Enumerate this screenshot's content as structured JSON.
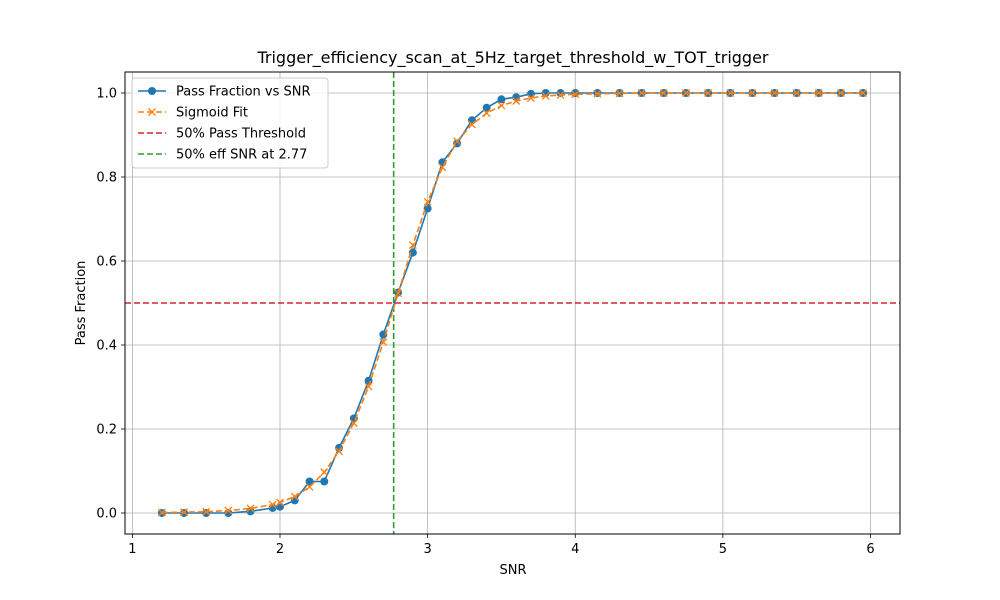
{
  "chart_data": {
    "type": "line",
    "title": "Trigger_efficiency_scan_at_5Hz_target_threshold_w_TOT_trigger",
    "xlabel": "SNR",
    "ylabel": "Pass Fraction",
    "xlim": [
      0.95,
      6.2
    ],
    "ylim": [
      -0.05,
      1.05
    ],
    "xticks": [
      "1",
      "2",
      "3",
      "4",
      "5",
      "6"
    ],
    "yticks": [
      "0.0",
      "0.2",
      "0.4",
      "0.6",
      "0.8",
      "1.0"
    ],
    "grid": true,
    "legend_position": "top-left",
    "series": [
      {
        "name": "Pass Fraction vs SNR",
        "color": "#1f77b4",
        "marker": "circle",
        "linestyle": "solid",
        "x": [
          1.2,
          1.35,
          1.5,
          1.65,
          1.8,
          1.95,
          2.0,
          2.1,
          2.2,
          2.3,
          2.4,
          2.5,
          2.6,
          2.7,
          2.8,
          2.9,
          3.0,
          3.1,
          3.2,
          3.3,
          3.4,
          3.5,
          3.6,
          3.7,
          3.8,
          3.9,
          4.0,
          4.15,
          4.3,
          4.45,
          4.6,
          4.75,
          4.9,
          5.05,
          5.2,
          5.35,
          5.5,
          5.65,
          5.8,
          5.95
        ],
        "y": [
          0.0,
          0.0,
          0.0,
          0.0,
          0.004,
          0.012,
          0.015,
          0.03,
          0.075,
          0.075,
          0.155,
          0.225,
          0.315,
          0.425,
          0.525,
          0.62,
          0.725,
          0.835,
          0.88,
          0.935,
          0.965,
          0.985,
          0.99,
          0.998,
          1.0,
          1.0,
          1.0,
          1.0,
          1.0,
          1.0,
          1.0,
          1.0,
          1.0,
          1.0,
          1.0,
          1.0,
          1.0,
          1.0,
          1.0,
          1.0
        ]
      },
      {
        "name": "Sigmoid Fit",
        "color": "#ff7f0e",
        "marker": "x",
        "linestyle": "dashed",
        "x": [
          1.2,
          1.35,
          1.5,
          1.65,
          1.8,
          1.95,
          2.0,
          2.1,
          2.2,
          2.3,
          2.4,
          2.5,
          2.6,
          2.7,
          2.8,
          2.9,
          3.0,
          3.1,
          3.2,
          3.3,
          3.4,
          3.5,
          3.6,
          3.7,
          3.8,
          3.9,
          4.0,
          4.15,
          4.3,
          4.45,
          4.6,
          4.75,
          4.9,
          5.05,
          5.2,
          5.35,
          5.5,
          5.65,
          5.8,
          5.95
        ],
        "y": [
          0.001,
          0.002,
          0.003,
          0.006,
          0.011,
          0.02,
          0.025,
          0.039,
          0.062,
          0.097,
          0.147,
          0.214,
          0.301,
          0.407,
          0.523,
          0.638,
          0.741,
          0.823,
          0.885,
          0.925,
          0.952,
          0.97,
          0.981,
          0.988,
          0.993,
          0.995,
          0.997,
          0.998,
          0.999,
          1.0,
          1.0,
          1.0,
          1.0,
          1.0,
          1.0,
          1.0,
          1.0,
          1.0,
          1.0,
          1.0
        ]
      }
    ],
    "reference_lines": [
      {
        "name": "50% Pass Threshold",
        "orientation": "horizontal",
        "value": 0.5,
        "color": "#d62728"
      },
      {
        "name": "50% eff SNR at 2.77",
        "orientation": "vertical",
        "value": 2.77,
        "color": "#2ca02c"
      }
    ]
  }
}
